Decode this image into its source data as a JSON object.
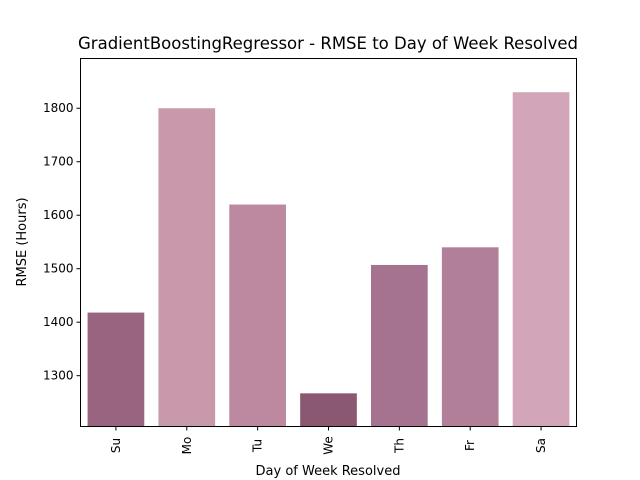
{
  "chart_data": {
    "type": "bar",
    "title": "GradientBoostingRegressor - RMSE to Day of Week Resolved",
    "xlabel": "Day of Week Resolved",
    "ylabel": "RMSE (Hours)",
    "categories": [
      "Su",
      "Mo",
      "Tu",
      "We",
      "Th",
      "Fr",
      "Sa"
    ],
    "values": [
      1418,
      1800,
      1620,
      1267,
      1507,
      1540,
      1830
    ],
    "colors": [
      "#98647f",
      "#c898ab",
      "#bd89a0",
      "#8b5872",
      "#a57390",
      "#b17f98",
      "#d2a6b8"
    ],
    "ylim": [
      1205,
      1893
    ],
    "yticks": [
      1300,
      1400,
      1500,
      1600,
      1700,
      1800
    ],
    "grid": false,
    "legend": "none"
  }
}
